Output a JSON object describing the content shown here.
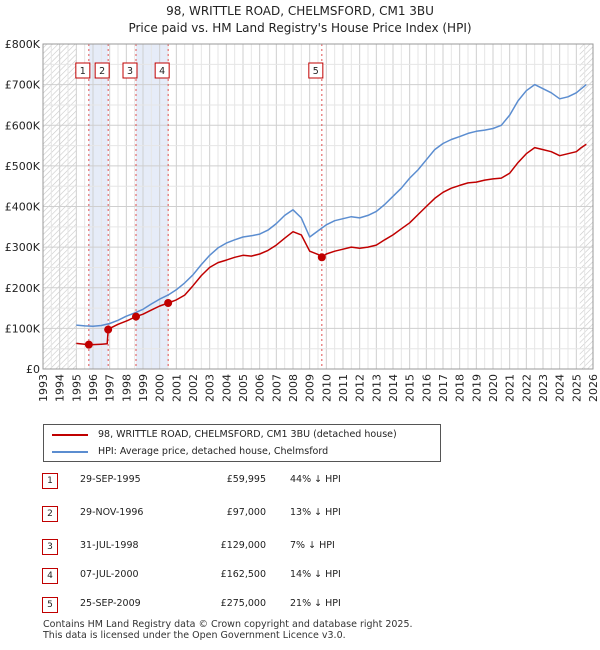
{
  "header": {
    "title": "98, WRITTLE ROAD, CHELMSFORD, CM1 3BU",
    "subtitle": "Price paid vs. HM Land Registry's House Price Index (HPI)"
  },
  "chart_data": {
    "type": "line",
    "xlim": [
      1993,
      2026
    ],
    "ylim": [
      0,
      800000
    ],
    "y_ticks": [
      {
        "value": 0,
        "label": "£0"
      },
      {
        "value": 100000,
        "label": "£100K"
      },
      {
        "value": 200000,
        "label": "£200K"
      },
      {
        "value": 300000,
        "label": "£300K"
      },
      {
        "value": 400000,
        "label": "£400K"
      },
      {
        "value": 500000,
        "label": "£500K"
      },
      {
        "value": 600000,
        "label": "£600K"
      },
      {
        "value": 700000,
        "label": "£700K"
      },
      {
        "value": 800000,
        "label": "£800K"
      }
    ],
    "x_ticks": [
      "1993",
      "1994",
      "1995",
      "1996",
      "1997",
      "1998",
      "1999",
      "2000",
      "2001",
      "2002",
      "2003",
      "2004",
      "2005",
      "2006",
      "2007",
      "2008",
      "2009",
      "2010",
      "2011",
      "2012",
      "2013",
      "2014",
      "2015",
      "2016",
      "2017",
      "2018",
      "2019",
      "2020",
      "2021",
      "2022",
      "2023",
      "2024",
      "2025",
      "2026"
    ],
    "hatched_ranges": [
      [
        1993,
        1995.0
      ],
      [
        2025.2,
        2026
      ]
    ],
    "shaded_ranges": [
      [
        1995.75,
        1996.91
      ],
      [
        1998.58,
        2000.51
      ]
    ],
    "series": [
      {
        "name": "98, WRITTLE ROAD, CHELMSFORD, CM1 3BU (detached house)",
        "color": "#c00000",
        "x": [
          1995.0,
          1995.5,
          1995.75,
          1996.0,
          1996.5,
          1996.85,
          1996.91,
          1997.0,
          1997.5,
          1998.0,
          1998.58,
          1999.0,
          1999.5,
          2000.0,
          2000.51,
          2001.0,
          2001.5,
          2002.0,
          2002.5,
          2003.0,
          2003.5,
          2004.0,
          2004.5,
          2005.0,
          2005.5,
          2006.0,
          2006.5,
          2007.0,
          2007.5,
          2008.0,
          2008.5,
          2009.0,
          2009.5,
          2009.73,
          2010.0,
          2010.5,
          2011.0,
          2011.5,
          2012.0,
          2012.5,
          2013.0,
          2013.5,
          2014.0,
          2014.5,
          2015.0,
          2015.5,
          2016.0,
          2016.5,
          2017.0,
          2017.5,
          2018.0,
          2018.5,
          2019.0,
          2019.5,
          2020.0,
          2020.5,
          2021.0,
          2021.5,
          2022.0,
          2022.5,
          2023.0,
          2023.5,
          2024.0,
          2024.5,
          2025.0,
          2025.3,
          2025.6
        ],
        "values": [
          63000,
          61000,
          59995,
          60000,
          61000,
          62000,
          97000,
          100000,
          110000,
          118000,
          129000,
          135000,
          145000,
          155000,
          162500,
          170000,
          182000,
          205000,
          230000,
          250000,
          262000,
          268000,
          275000,
          280000,
          278000,
          283000,
          292000,
          305000,
          322000,
          338000,
          330000,
          290000,
          282000,
          275000,
          283000,
          290000,
          295000,
          300000,
          297000,
          300000,
          305000,
          318000,
          330000,
          345000,
          360000,
          380000,
          400000,
          420000,
          435000,
          445000,
          452000,
          458000,
          460000,
          465000,
          468000,
          470000,
          482000,
          508000,
          530000,
          545000,
          540000,
          535000,
          525000,
          530000,
          535000,
          545000,
          553000
        ]
      },
      {
        "name": "HPI: Average price, detached house, Chelmsford",
        "color": "#5b8dd0",
        "x": [
          1995.0,
          1995.5,
          1996.0,
          1996.5,
          1997.0,
          1997.5,
          1998.0,
          1998.5,
          1999.0,
          1999.5,
          2000.0,
          2000.5,
          2001.0,
          2001.5,
          2002.0,
          2002.5,
          2003.0,
          2003.5,
          2004.0,
          2004.5,
          2005.0,
          2005.5,
          2006.0,
          2006.5,
          2007.0,
          2007.5,
          2008.0,
          2008.5,
          2009.0,
          2009.5,
          2010.0,
          2010.5,
          2011.0,
          2011.5,
          2012.0,
          2012.5,
          2013.0,
          2013.5,
          2014.0,
          2014.5,
          2015.0,
          2015.5,
          2016.0,
          2016.5,
          2017.0,
          2017.5,
          2018.0,
          2018.5,
          2019.0,
          2019.5,
          2020.0,
          2020.5,
          2021.0,
          2021.5,
          2022.0,
          2022.5,
          2023.0,
          2023.5,
          2024.0,
          2024.5,
          2025.0,
          2025.3,
          2025.6
        ],
        "values": [
          108000,
          106000,
          105000,
          107000,
          112000,
          120000,
          130000,
          138000,
          147000,
          160000,
          172000,
          182000,
          195000,
          212000,
          232000,
          257000,
          280000,
          298000,
          310000,
          318000,
          325000,
          328000,
          332000,
          342000,
          358000,
          378000,
          392000,
          372000,
          325000,
          340000,
          355000,
          365000,
          370000,
          375000,
          372000,
          378000,
          388000,
          405000,
          425000,
          445000,
          470000,
          490000,
          515000,
          540000,
          555000,
          565000,
          572000,
          580000,
          585000,
          588000,
          592000,
          600000,
          625000,
          660000,
          685000,
          700000,
          690000,
          680000,
          665000,
          670000,
          680000,
          690000,
          700000
        ]
      }
    ],
    "sales": [
      {
        "num": "1",
        "x": 1995.75,
        "value": 59995
      },
      {
        "num": "2",
        "x": 1996.91,
        "value": 97000
      },
      {
        "num": "3",
        "x": 1998.58,
        "value": 129000
      },
      {
        "num": "4",
        "x": 2000.51,
        "value": 162500
      },
      {
        "num": "5",
        "x": 2009.73,
        "value": 275000
      }
    ]
  },
  "legend": {
    "items": [
      {
        "label": "98, WRITTLE ROAD, CHELMSFORD, CM1 3BU (detached house)",
        "color": "#c00000"
      },
      {
        "label": "HPI: Average price, detached house, Chelmsford",
        "color": "#5b8dd0"
      }
    ]
  },
  "sales_table": [
    {
      "num": "1",
      "date": "29-SEP-1995",
      "price": "£59,995",
      "hpi": "44% ↓ HPI"
    },
    {
      "num": "2",
      "date": "29-NOV-1996",
      "price": "£97,000",
      "hpi": "13% ↓ HPI"
    },
    {
      "num": "3",
      "date": "31-JUL-1998",
      "price": "£129,000",
      "hpi": "7% ↓ HPI"
    },
    {
      "num": "4",
      "date": "07-JUL-2000",
      "price": "£162,500",
      "hpi": "14% ↓ HPI"
    },
    {
      "num": "5",
      "date": "25-SEP-2009",
      "price": "£275,000",
      "hpi": "21% ↓ HPI"
    }
  ],
  "footer": {
    "line1": "Contains HM Land Registry data © Crown copyright and database right 2025.",
    "line2": "This data is licensed under the Open Government Licence v3.0."
  }
}
